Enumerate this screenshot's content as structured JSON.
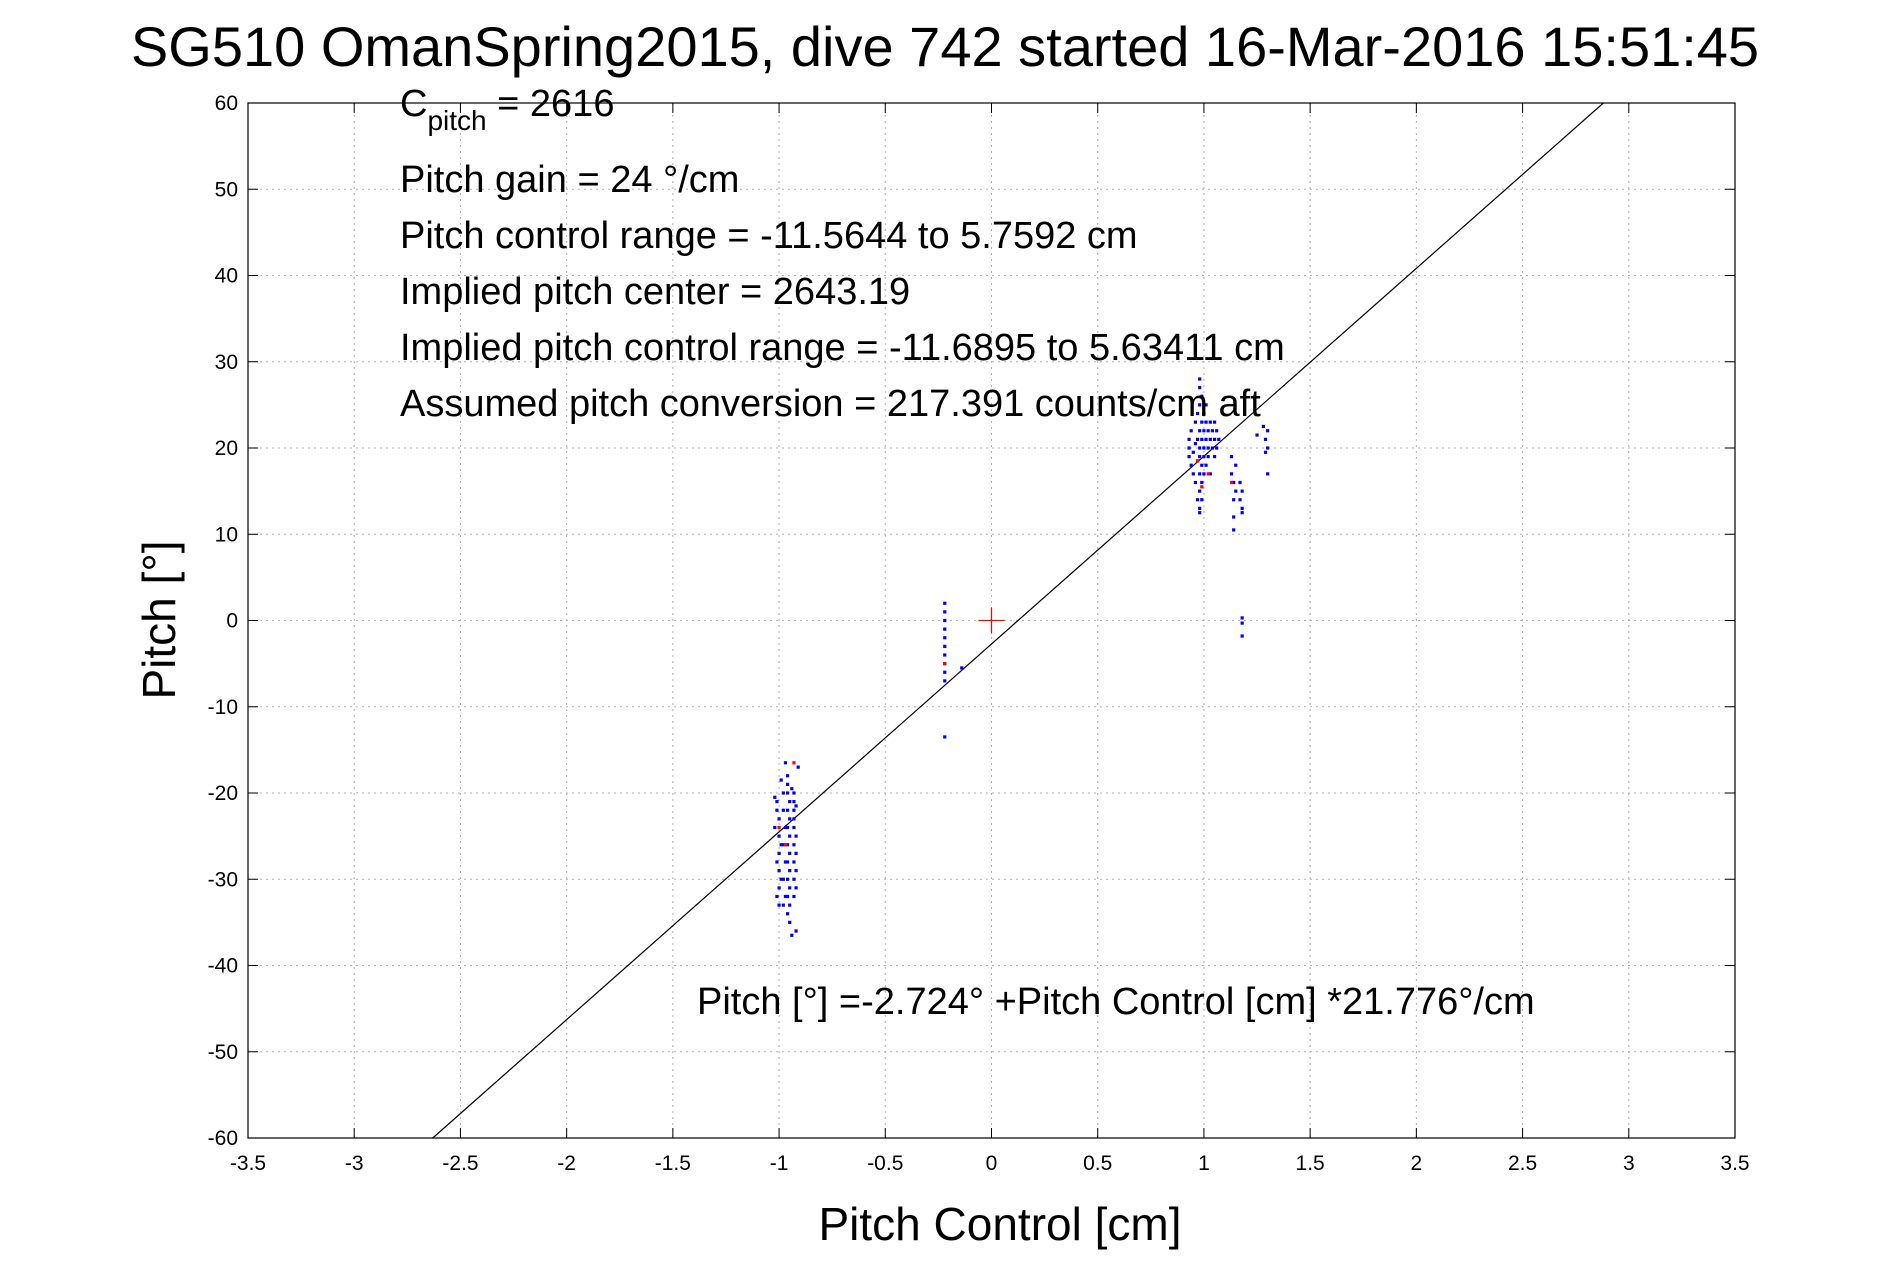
{
  "chart_data": {
    "type": "scatter",
    "title": "SG510 OmanSpring2015, dive 742 started 16-Mar-2016 15:51:45",
    "xlabel": "Pitch Control [cm]",
    "ylabel": "Pitch [°]",
    "xlim": [
      -3.5,
      3.5
    ],
    "ylim": [
      -60,
      60
    ],
    "xticks": [
      "-3.5",
      "-3",
      "-2.5",
      "-2",
      "-1.5",
      "-1",
      "-0.5",
      "0",
      "0.5",
      "1",
      "1.5",
      "2",
      "2.5",
      "3",
      "3.5"
    ],
    "yticks": [
      "60",
      "50",
      "40",
      "30",
      "20",
      "10",
      "0",
      "-10",
      "-20",
      "-30",
      "-40",
      "-50",
      "-60"
    ],
    "grid": true,
    "legend": "none",
    "annotations": {
      "c_pitch_main": "C",
      "c_pitch_sub": "pitch",
      "c_pitch_value": " = 2616",
      "pitch_gain": "Pitch gain = 24 °/cm",
      "control_range": "Pitch control range = -11.5644 to 5.7592 cm",
      "implied_center": "Implied pitch center = 2643.19",
      "implied_range": "Implied pitch control range = -11.6895 to 5.63411 cm",
      "assumed_conversion": "Assumed pitch conversion = 217.391 counts/cm aft",
      "fit_equation": "Pitch [°] =-2.724° +Pitch Control [cm] *21.776°/cm"
    },
    "fit_line": {
      "intercept": -2.724,
      "slope": 21.776,
      "color": "#000000"
    },
    "center_marker": {
      "x": 0,
      "y": 0,
      "color": "#ff0000"
    },
    "series": [
      {
        "color": "#0000ff",
        "points": [
          [
            -1.01,
            -21
          ],
          [
            -1.01,
            -22
          ],
          [
            -1.0,
            -23
          ],
          [
            -1.02,
            -24
          ],
          [
            -1.0,
            -25
          ],
          [
            -0.99,
            -26
          ],
          [
            -1.0,
            -27
          ],
          [
            -1.01,
            -28
          ],
          [
            -1.0,
            -29
          ],
          [
            -0.99,
            -30
          ],
          [
            -1.0,
            -31
          ],
          [
            -1.01,
            -32
          ],
          [
            -1.0,
            -33
          ],
          [
            -0.98,
            -20
          ],
          [
            -0.98,
            -22
          ],
          [
            -0.97,
            -24
          ],
          [
            -0.98,
            -26
          ],
          [
            -0.97,
            -28
          ],
          [
            -0.98,
            -30
          ],
          [
            -0.97,
            -32
          ],
          [
            -0.98,
            -33
          ],
          [
            -0.96,
            -18
          ],
          [
            -0.96,
            -19
          ],
          [
            -0.96,
            -20
          ],
          [
            -0.95,
            -21
          ],
          [
            -0.96,
            -22
          ],
          [
            -0.95,
            -23
          ],
          [
            -0.96,
            -24
          ],
          [
            -0.95,
            -25
          ],
          [
            -0.96,
            -26
          ],
          [
            -0.95,
            -27
          ],
          [
            -0.96,
            -28
          ],
          [
            -0.95,
            -29
          ],
          [
            -0.96,
            -30
          ],
          [
            -0.95,
            -31
          ],
          [
            -0.96,
            -32
          ],
          [
            -0.95,
            -33
          ],
          [
            -0.96,
            -34
          ],
          [
            -0.93,
            -20
          ],
          [
            -0.93,
            -21
          ],
          [
            -0.93,
            -22
          ],
          [
            -0.93,
            -23
          ],
          [
            -0.93,
            -24
          ],
          [
            -0.92,
            -25
          ],
          [
            -0.93,
            -26
          ],
          [
            -0.92,
            -27
          ],
          [
            -0.93,
            -28
          ],
          [
            -0.92,
            -29
          ],
          [
            -0.93,
            -30
          ],
          [
            -0.92,
            -31
          ],
          [
            -0.93,
            -32
          ],
          [
            -0.91,
            -17
          ],
          [
            -0.92,
            -36
          ],
          [
            -0.95,
            -35
          ],
          [
            -0.94,
            -36.5
          ],
          [
            -0.97,
            -16.5
          ],
          [
            -0.99,
            -18.5
          ],
          [
            -1.02,
            -20.5
          ],
          [
            -0.94,
            -19.5
          ],
          [
            -0.92,
            -21.5
          ],
          [
            -0.22,
            2
          ],
          [
            -0.22,
            1
          ],
          [
            -0.22,
            0
          ],
          [
            -0.22,
            -1
          ],
          [
            -0.22,
            -2
          ],
          [
            -0.22,
            -3
          ],
          [
            -0.22,
            -4
          ],
          [
            -0.22,
            -5
          ],
          [
            -0.22,
            -6
          ],
          [
            -0.22,
            -7
          ],
          [
            -0.22,
            -13.5
          ],
          [
            -0.14,
            -5.5
          ],
          [
            0.93,
            19
          ],
          [
            0.93,
            20
          ],
          [
            0.93,
            21
          ],
          [
            0.94,
            18
          ],
          [
            0.94,
            22
          ],
          [
            0.95,
            19.5
          ],
          [
            0.95,
            17
          ],
          [
            0.96,
            20.5
          ],
          [
            0.96,
            23
          ],
          [
            0.96,
            16
          ],
          [
            0.97,
            18.5
          ],
          [
            0.97,
            21
          ],
          [
            0.97,
            24
          ],
          [
            0.97,
            14
          ],
          [
            0.98,
            17
          ],
          [
            0.98,
            19
          ],
          [
            0.98,
            20
          ],
          [
            0.98,
            22
          ],
          [
            0.98,
            25
          ],
          [
            0.98,
            27
          ],
          [
            0.98,
            28
          ],
          [
            0.98,
            15
          ],
          [
            0.98,
            13
          ],
          [
            0.98,
            12.5
          ],
          [
            0.99,
            18
          ],
          [
            0.99,
            21
          ],
          [
            0.99,
            23
          ],
          [
            0.99,
            26
          ],
          [
            0.99,
            16
          ],
          [
            0.99,
            14
          ],
          [
            1.0,
            19
          ],
          [
            1.0,
            20
          ],
          [
            1.0,
            22
          ],
          [
            1.0,
            24
          ],
          [
            1.0,
            17
          ],
          [
            1.01,
            21
          ],
          [
            1.01,
            23
          ],
          [
            1.01,
            18
          ],
          [
            1.01,
            25
          ],
          [
            1.02,
            20
          ],
          [
            1.02,
            22
          ],
          [
            1.02,
            19
          ],
          [
            1.03,
            21
          ],
          [
            1.03,
            23
          ],
          [
            1.03,
            17
          ],
          [
            1.04,
            20
          ],
          [
            1.04,
            22
          ],
          [
            1.05,
            21
          ],
          [
            1.05,
            23
          ],
          [
            1.05,
            19
          ],
          [
            1.06,
            22
          ],
          [
            1.06,
            20
          ],
          [
            1.07,
            21
          ],
          [
            1.13,
            19
          ],
          [
            1.13,
            17
          ],
          [
            1.14,
            16
          ],
          [
            1.14,
            14
          ],
          [
            1.14,
            12
          ],
          [
            1.14,
            10.5
          ],
          [
            1.15,
            18
          ],
          [
            1.15,
            15
          ],
          [
            1.17,
            16
          ],
          [
            1.17,
            14
          ],
          [
            1.18,
            13
          ],
          [
            1.18,
            15
          ],
          [
            1.18,
            12.5
          ],
          [
            1.18,
            0.3
          ],
          [
            1.18,
            -0.3
          ],
          [
            1.18,
            -1.8
          ],
          [
            1.25,
            21.5
          ],
          [
            1.28,
            22.5
          ],
          [
            1.29,
            21
          ],
          [
            1.29,
            19.5
          ],
          [
            1.3,
            22
          ],
          [
            1.3,
            20
          ],
          [
            1.3,
            17
          ]
        ]
      },
      {
        "color": "#ff0000",
        "points": [
          [
            -0.93,
            -16.5
          ],
          [
            -0.97,
            -26
          ],
          [
            -1.0,
            -24
          ],
          [
            -0.22,
            -5
          ],
          [
            0.99,
            15.5
          ],
          [
            1.02,
            17
          ],
          [
            0.97,
            18.5
          ],
          [
            1.13,
            16
          ]
        ]
      }
    ]
  }
}
